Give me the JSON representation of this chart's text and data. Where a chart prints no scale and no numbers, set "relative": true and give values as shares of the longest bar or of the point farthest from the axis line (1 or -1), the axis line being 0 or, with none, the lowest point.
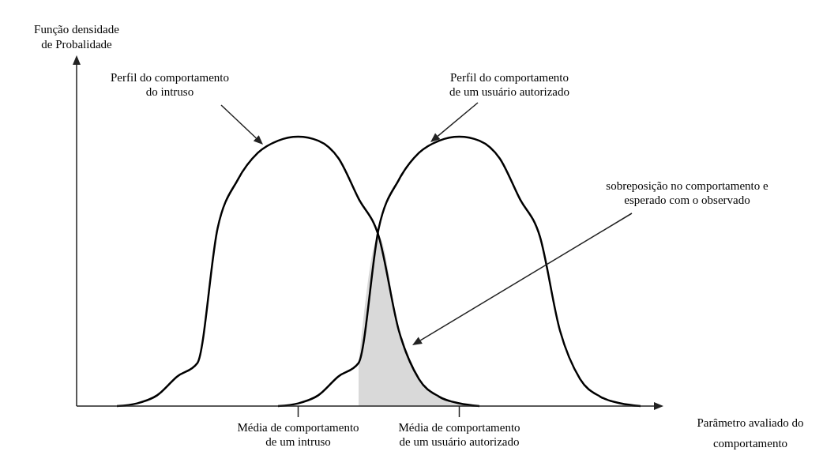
{
  "chart_data": {
    "type": "line",
    "relative": true,
    "xlabel": "Parâmetro avaliado do\ncomportamento",
    "categories": [
      null,
      null,
      null,
      null,
      null,
      null,
      null,
      null,
      null,
      null,
      null,
      "Média de comportamento\nde um intruso",
      null,
      null,
      null,
      null,
      null,
      null,
      null,
      "Média de comportamento\nde um usuário autorizado",
      null,
      null,
      null,
      null,
      null,
      null,
      null,
      null,
      null,
      null
    ],
    "series": [
      {
        "name": "Perfil do comportamento\ndo intruso",
        "color": "#000000",
        "values": [
          null,
          null,
          0,
          0.01,
          0.04,
          0.11,
          0.16,
          0.66,
          0.84,
          0.94,
          0.985,
          1,
          0.985,
          0.92,
          0.77,
          0.63,
          0.28,
          0.1,
          0.035,
          0.01,
          0,
          null,
          null,
          null,
          null,
          null,
          null,
          null,
          null,
          null
        ]
      },
      {
        "name": "Perfil do comportamento\nde um usuário autorizado",
        "color": "#000000",
        "values": [
          null,
          null,
          null,
          null,
          null,
          null,
          null,
          null,
          null,
          null,
          0,
          0.01,
          0.04,
          0.11,
          0.16,
          0.66,
          0.84,
          0.94,
          0.985,
          1,
          0.985,
          0.92,
          0.77,
          0.63,
          0.28,
          0.1,
          0.035,
          0.01,
          0,
          null
        ]
      },
      {
        "type": "area",
        "color": "#d9d9d9",
        "values": [
          null,
          null,
          null,
          null,
          null,
          null,
          null,
          null,
          null,
          null,
          null,
          null,
          null,
          null,
          0.16,
          0.63,
          0.28,
          0.1,
          0.035,
          0.01,
          0,
          null,
          null,
          null,
          null,
          null,
          null,
          null,
          null,
          null
        ]
      }
    ],
    "annotations": [
      "sobreposição no comportamento e\nesperado com o observado",
      "Função densidade\nde Probalidade"
    ]
  }
}
